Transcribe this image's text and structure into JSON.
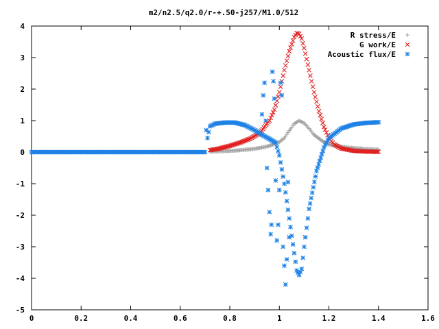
{
  "chart_data": {
    "type": "scatter",
    "title": "m2/n2.5/q2.0/r-+.50-j257/M1.0/512",
    "xlabel": "",
    "ylabel": "",
    "xlim": [
      0,
      1.6
    ],
    "ylim": [
      -5,
      4
    ],
    "x_ticks": [
      "0",
      "0.2",
      "0.4",
      "0.6",
      "0.8",
      "1",
      "1.2",
      "1.4",
      "1.6"
    ],
    "y_ticks": [
      "-5",
      "-4",
      "-3",
      "-2",
      "-1",
      "0",
      "1",
      "2",
      "3",
      "4"
    ],
    "grid": false,
    "legend_position": "top-right",
    "series": [
      {
        "name": "R stress/E",
        "marker": "plus",
        "color": "#a0a0a0",
        "x": [
          0.72,
          0.76,
          0.8,
          0.84,
          0.88,
          0.92,
          0.96,
          1.0,
          1.02,
          1.04,
          1.06,
          1.08,
          1.1,
          1.12,
          1.14,
          1.17,
          1.2,
          1.25,
          1.3,
          1.35,
          1.4
        ],
        "y": [
          0.02,
          0.03,
          0.04,
          0.06,
          0.09,
          0.13,
          0.2,
          0.32,
          0.45,
          0.68,
          0.9,
          1.0,
          0.92,
          0.75,
          0.55,
          0.37,
          0.24,
          0.17,
          0.13,
          0.1,
          0.08
        ]
      },
      {
        "name": "G work/E",
        "marker": "cross",
        "color": "#e02020",
        "x": [
          0.72,
          0.76,
          0.8,
          0.84,
          0.88,
          0.92,
          0.96,
          0.98,
          1.0,
          1.02,
          1.04,
          1.06,
          1.07,
          1.08,
          1.09,
          1.1,
          1.12,
          1.14,
          1.16,
          1.18,
          1.2,
          1.22,
          1.25,
          1.3,
          1.35,
          1.4
        ],
        "y": [
          0.06,
          0.12,
          0.2,
          0.3,
          0.42,
          0.6,
          1.0,
          1.35,
          1.9,
          2.6,
          3.2,
          3.65,
          3.78,
          3.75,
          3.6,
          3.3,
          2.6,
          1.9,
          1.3,
          0.8,
          0.45,
          0.25,
          0.12,
          0.04,
          0.02,
          0.01
        ]
      },
      {
        "name": "Acoustic flux/E",
        "marker": "star",
        "color": "#1e82e6",
        "x": [
          0.0,
          0.1,
          0.2,
          0.3,
          0.4,
          0.5,
          0.6,
          0.7,
          0.705,
          0.71,
          0.72,
          0.74,
          0.78,
          0.82,
          0.86,
          0.9,
          0.93,
          0.96,
          0.985,
          1.0,
          1.02,
          1.04,
          1.06,
          1.07,
          1.08,
          1.09,
          1.1,
          1.12,
          1.15,
          1.18,
          1.2,
          1.25,
          1.3,
          1.35,
          1.4
        ],
        "y": [
          0.0,
          0.0,
          0.0,
          0.0,
          0.0,
          0.0,
          0.0,
          0.0,
          0.7,
          0.45,
          0.82,
          0.9,
          0.94,
          0.94,
          0.86,
          0.7,
          0.55,
          0.42,
          0.3,
          -0.1,
          -1.0,
          -2.1,
          -3.2,
          -3.75,
          -3.9,
          -3.7,
          -3.0,
          -1.8,
          -0.6,
          0.15,
          0.45,
          0.75,
          0.88,
          0.93,
          0.95
        ]
      },
      {
        "name": "",
        "marker": "star",
        "color": "#1e82e6",
        "x": [
          0.93,
          0.935,
          0.94,
          0.945,
          0.95,
          0.955,
          0.96,
          0.965,
          0.968,
          0.972,
          0.976,
          0.98,
          0.985,
          0.99,
          0.995,
          1.0,
          1.005,
          1.01,
          1.015,
          1.02,
          1.025,
          1.03,
          1.035,
          1.04
        ],
        "y": [
          1.2,
          1.8,
          2.2,
          1.0,
          -0.5,
          -1.2,
          -1.9,
          -2.6,
          -2.3,
          2.55,
          2.25,
          1.7,
          -0.9,
          -2.8,
          -2.3,
          -1.2,
          2.2,
          1.8,
          -3.0,
          -3.6,
          -4.2,
          -3.4,
          -0.95,
          -2.7
        ]
      }
    ]
  }
}
